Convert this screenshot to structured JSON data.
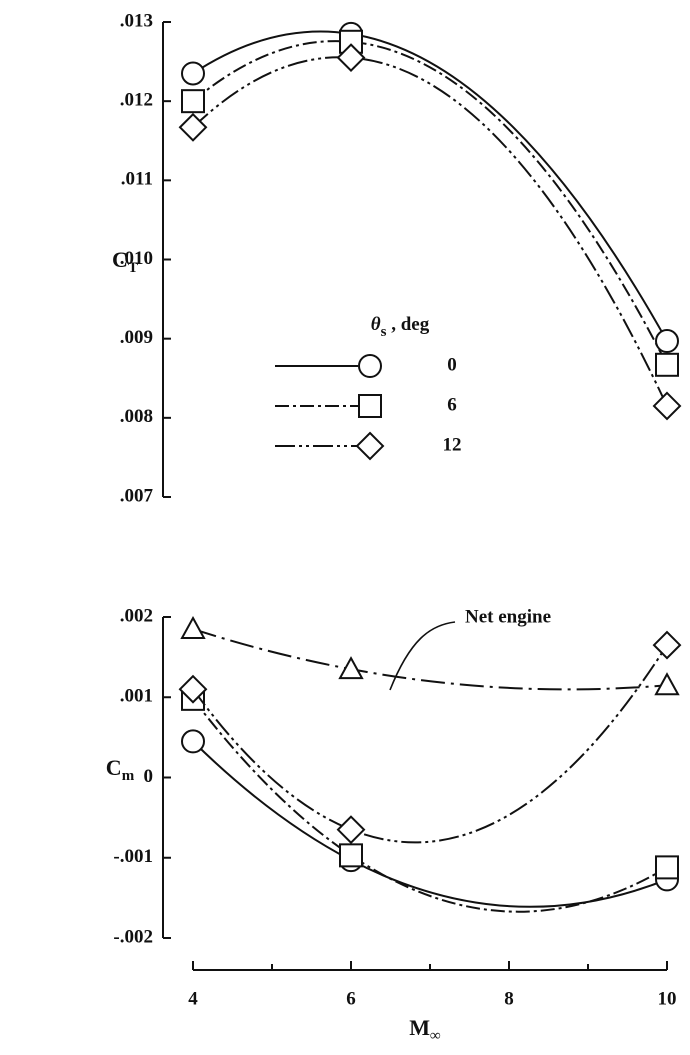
{
  "chart_data": [
    {
      "type": "line",
      "ylabel": {
        "main": "C",
        "sub": "T"
      },
      "x": [
        4,
        6,
        10
      ],
      "xlim": [
        4,
        10
      ],
      "ylim": [
        0.007,
        0.013
      ],
      "yticks": [
        {
          "value": 0.013,
          "label": ".013"
        },
        {
          "value": 0.012,
          "label": ".012"
        },
        {
          "value": 0.011,
          "label": ".011"
        },
        {
          "value": 0.01,
          "label": ".010"
        },
        {
          "value": 0.009,
          "label": ".009"
        },
        {
          "value": 0.008,
          "label": ".008"
        },
        {
          "value": 0.007,
          "label": ".007"
        }
      ],
      "legend_title": {
        "main": "θ",
        "sub": "s",
        "rest": " , deg"
      },
      "series": [
        {
          "name": "0",
          "marker": "circle",
          "dash": "solid",
          "color": "#111111",
          "values": [
            0.01235,
            0.01285,
            0.00897
          ]
        },
        {
          "name": "6",
          "marker": "square",
          "dash": "dashdot",
          "color": "#111111",
          "values": [
            0.012,
            0.01275,
            0.00867
          ]
        },
        {
          "name": "12",
          "marker": "diamond",
          "dash": "dashdotdot",
          "color": "#111111",
          "values": [
            0.01167,
            0.01255,
            0.00815
          ]
        }
      ]
    },
    {
      "type": "line",
      "ylabel": {
        "main": "C",
        "sub": "m"
      },
      "xlabel": {
        "main": "M",
        "sub": "∞"
      },
      "x": [
        4,
        6,
        10
      ],
      "xlim": [
        4,
        10
      ],
      "xticks": [
        4,
        6,
        8,
        10
      ],
      "x_minor_ticks": [
        5,
        7,
        9
      ],
      "ylim": [
        -0.002,
        0.002
      ],
      "yticks": [
        {
          "value": 0.002,
          "label": ".002"
        },
        {
          "value": 0.001,
          "label": ".001"
        },
        0,
        {
          "value": -0.001,
          "label": "-.001"
        },
        {
          "value": -0.002,
          "label": "-.002"
        }
      ],
      "series": [
        {
          "name": "0",
          "marker": "circle",
          "dash": "solid",
          "color": "#111111",
          "values": [
            0.00045,
            -0.00103,
            -0.00127
          ]
        },
        {
          "name": "6",
          "marker": "square",
          "dash": "dashdot",
          "color": "#111111",
          "values": [
            0.00098,
            -0.00097,
            -0.00112
          ]
        },
        {
          "name": "12",
          "marker": "diamond",
          "dash": "dashdotdot",
          "color": "#111111",
          "values": [
            0.0011,
            -0.00065,
            0.00165
          ]
        },
        {
          "name": "Net engine",
          "marker": "triangle",
          "dash": "longdashdot",
          "color": "#111111",
          "values": [
            0.00185,
            0.00135,
            0.00115
          ]
        }
      ]
    }
  ]
}
